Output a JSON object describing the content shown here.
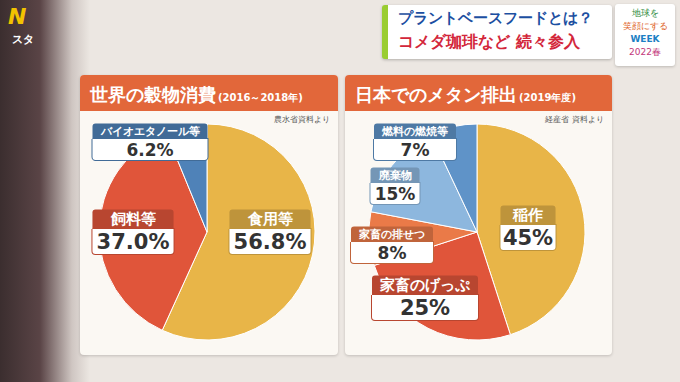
{
  "screen": {
    "logo": "N",
    "program": "スタ",
    "headline": "プラントベースフードとは？",
    "subheadline": "コメダ珈琲など 続々参入",
    "campaign": [
      "地球を",
      "笑顔にする",
      "WEEK",
      "2022春"
    ]
  },
  "chart_data": [
    {
      "type": "pie",
      "title": "世界の穀物消費",
      "subtitle": "(2016～2018年)",
      "annotations": [
        "農水省資料より"
      ],
      "categories": [
        "食用等",
        "飼料等",
        "バイオエタノール等"
      ],
      "values": [
        56.8,
        37.0,
        6.2
      ],
      "value_labels": [
        "56.8%",
        "37.0%",
        "6.2%"
      ],
      "colors": [
        "#e8b548",
        "#e0553a",
        "#4f82b8"
      ],
      "data_labels": true
    },
    {
      "type": "pie",
      "title": "日本でのメタン排出",
      "subtitle": "(2019年度)",
      "annotations": [
        "経産省 資料より"
      ],
      "categories": [
        "稲作",
        "家畜のげっぷ",
        "家畜の排せつ",
        "廃棄物",
        "燃料の燃焼等"
      ],
      "values": [
        45,
        25,
        8,
        15,
        7
      ],
      "value_labels": [
        "45%",
        "25%",
        "8%",
        "15%",
        "7%"
      ],
      "colors": [
        "#e8b548",
        "#e0553a",
        "#ea7a48",
        "#8db7de",
        "#5f93c8"
      ],
      "data_labels": true
    }
  ]
}
